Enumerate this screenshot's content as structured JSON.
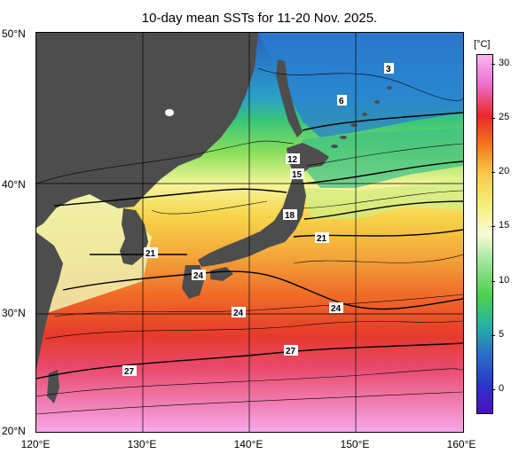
{
  "title": "10-day mean SSTs for 11-20 Nov. 2025.",
  "lat_labels": [
    "50°N",
    "40°N",
    "30°N",
    "20°N"
  ],
  "lon_labels": [
    "120°E",
    "130°E",
    "140°E",
    "150°E",
    "160°E"
  ],
  "colorbar": {
    "unit": "[°C]",
    "ticks": [
      "30",
      "25",
      "20",
      "15",
      "10",
      "5",
      "0"
    ],
    "colors": [
      "#f7b8f0",
      "#ee6fd0",
      "#e82828",
      "#f2781a",
      "#f8c84a",
      "#f3f07a",
      "#fbfbd8",
      "#9be59a",
      "#4fd14a",
      "#27b6a0",
      "#2b72c8",
      "#2a36c8",
      "#4a10c0"
    ]
  },
  "map": {
    "land_color": "#4d4d4d",
    "extent": {
      "lon": [
        120,
        160
      ],
      "lat": [
        20,
        50
      ]
    },
    "contour_labels": [
      "3",
      "6",
      "12",
      "15",
      "18",
      "21",
      "21",
      "24",
      "24",
      "24",
      "27",
      "27"
    ]
  }
}
